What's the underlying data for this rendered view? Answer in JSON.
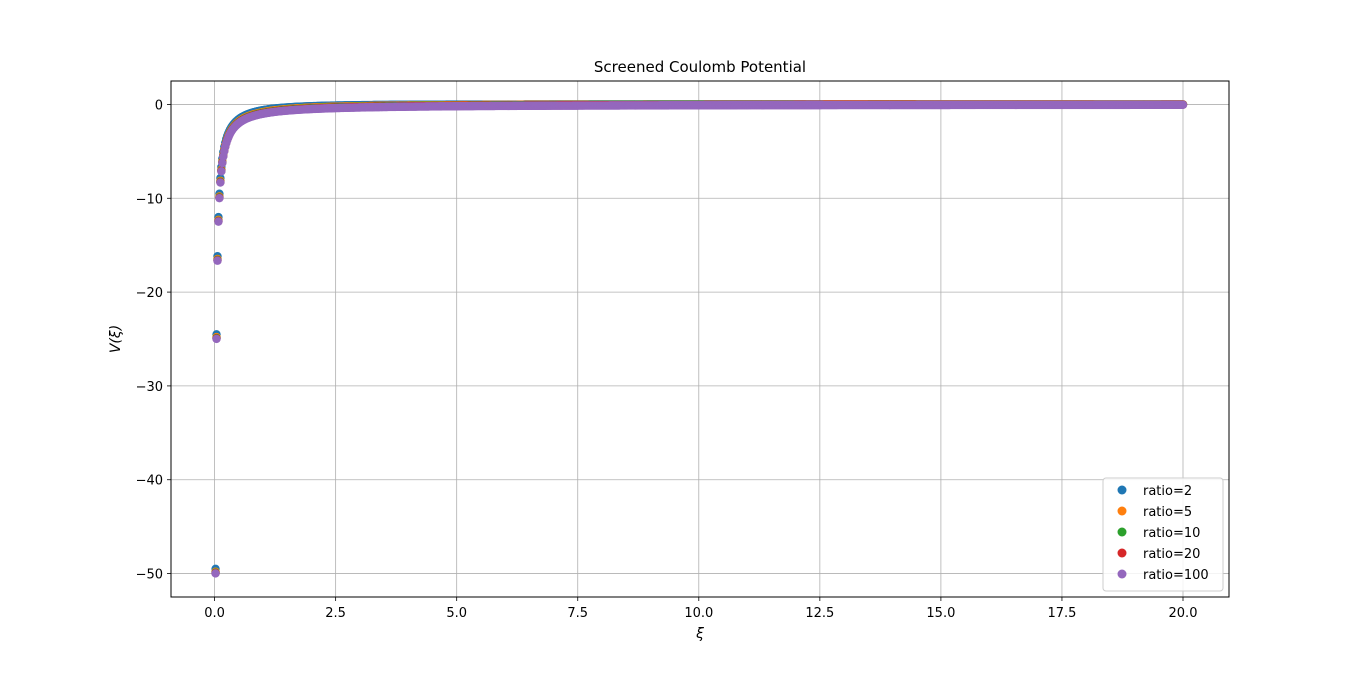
{
  "chart_data": {
    "type": "scatter",
    "title": "Screened Coulomb Potential",
    "xlabel": "ξ",
    "ylabel": "V(ξ)",
    "xlim": [
      -0.9,
      20.95
    ],
    "ylim": [
      -52.5,
      2.5
    ],
    "x_ticks": [
      0.0,
      2.5,
      5.0,
      7.5,
      10.0,
      12.5,
      15.0,
      17.5,
      20.0
    ],
    "x_tick_labels": [
      "0.0",
      "2.5",
      "5.0",
      "7.5",
      "10.0",
      "12.5",
      "15.0",
      "17.5",
      "20.0"
    ],
    "y_ticks": [
      0,
      -10,
      -20,
      -30,
      -40,
      -50
    ],
    "y_tick_labels": [
      "0",
      "−10",
      "−20",
      "−30",
      "−40",
      "−50"
    ],
    "grid": true,
    "legend_position": "lower right",
    "x_sampling": {
      "start": 0.02,
      "stop": 20.0,
      "count": 1000
    },
    "series": [
      {
        "name": "ratio=2",
        "ratio": 2,
        "color": "#1f77b4"
      },
      {
        "name": "ratio=5",
        "ratio": 5,
        "color": "#ff7f0e"
      },
      {
        "name": "ratio=10",
        "ratio": 10,
        "color": "#2ca02c"
      },
      {
        "name": "ratio=20",
        "ratio": 20,
        "color": "#d62728"
      },
      {
        "name": "ratio=100",
        "ratio": 100,
        "color": "#9467bd"
      }
    ]
  }
}
